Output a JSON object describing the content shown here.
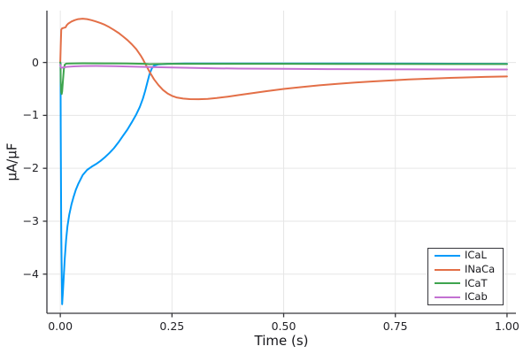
{
  "figure": {
    "background": "#FFFFFF",
    "axis_color": "#36363b",
    "grid_color": "#e6e6e6",
    "text_color": "#1f1f24"
  },
  "chart_data": {
    "type": "line",
    "title": "",
    "xlabel": "Time (s)",
    "ylabel": "μA/μF",
    "xlim": [
      -0.03,
      1.02
    ],
    "ylim": [
      -4.74,
      0.98
    ],
    "grid": true,
    "legend_position": "bottom-right",
    "x_ticks": {
      "values": [
        0,
        0.25,
        0.5,
        0.75,
        1.0
      ],
      "labels": [
        "0.00",
        "0.25",
        "0.50",
        "0.75",
        "1.00"
      ]
    },
    "y_ticks": {
      "values": [
        0,
        -1,
        -2,
        -3,
        -4
      ],
      "labels": [
        "0",
        "−1",
        "−2",
        "−3",
        "−4"
      ]
    },
    "series": [
      {
        "name": "ICaL",
        "color": "#009AFA",
        "points": [
          [
            0,
            0
          ],
          [
            0.0005,
            -0.01
          ],
          [
            0.001,
            -1.2
          ],
          [
            0.002,
            -3.2
          ],
          [
            0.004,
            -4.57
          ],
          [
            0.006,
            -4.3
          ],
          [
            0.008,
            -4.0
          ],
          [
            0.01,
            -3.7
          ],
          [
            0.013,
            -3.35
          ],
          [
            0.016,
            -3.1
          ],
          [
            0.02,
            -2.88
          ],
          [
            0.025,
            -2.68
          ],
          [
            0.03,
            -2.53
          ],
          [
            0.035,
            -2.4
          ],
          [
            0.04,
            -2.3
          ],
          [
            0.05,
            -2.13
          ],
          [
            0.06,
            -2.03
          ],
          [
            0.07,
            -1.97
          ],
          [
            0.08,
            -1.92
          ],
          [
            0.09,
            -1.86
          ],
          [
            0.1,
            -1.79
          ],
          [
            0.11,
            -1.71
          ],
          [
            0.12,
            -1.62
          ],
          [
            0.13,
            -1.51
          ],
          [
            0.14,
            -1.39
          ],
          [
            0.15,
            -1.27
          ],
          [
            0.16,
            -1.13
          ],
          [
            0.17,
            -0.98
          ],
          [
            0.178,
            -0.84
          ],
          [
            0.185,
            -0.68
          ],
          [
            0.19,
            -0.54
          ],
          [
            0.195,
            -0.37
          ],
          [
            0.2,
            -0.21
          ],
          [
            0.205,
            -0.11
          ],
          [
            0.21,
            -0.06
          ],
          [
            0.22,
            -0.035
          ],
          [
            0.24,
            -0.025
          ],
          [
            0.28,
            -0.02
          ],
          [
            0.4,
            -0.018
          ],
          [
            0.6,
            -0.02
          ],
          [
            0.8,
            -0.022
          ],
          [
            1.0,
            -0.025
          ]
        ]
      },
      {
        "name": "INaCa",
        "color": "#E36F47",
        "points": [
          [
            0,
            0
          ],
          [
            0.001,
            0.3
          ],
          [
            0.002,
            0.62
          ],
          [
            0.004,
            0.645
          ],
          [
            0.008,
            0.655
          ],
          [
            0.012,
            0.665
          ],
          [
            0.014,
            0.7
          ],
          [
            0.018,
            0.735
          ],
          [
            0.025,
            0.775
          ],
          [
            0.032,
            0.8
          ],
          [
            0.04,
            0.82
          ],
          [
            0.05,
            0.828
          ],
          [
            0.06,
            0.82
          ],
          [
            0.07,
            0.8
          ],
          [
            0.08,
            0.775
          ],
          [
            0.09,
            0.745
          ],
          [
            0.1,
            0.71
          ],
          [
            0.11,
            0.665
          ],
          [
            0.12,
            0.615
          ],
          [
            0.13,
            0.56
          ],
          [
            0.14,
            0.495
          ],
          [
            0.15,
            0.425
          ],
          [
            0.16,
            0.345
          ],
          [
            0.17,
            0.25
          ],
          [
            0.18,
            0.13
          ],
          [
            0.185,
            0.06
          ],
          [
            0.19,
            -0.02
          ],
          [
            0.195,
            -0.1
          ],
          [
            0.2,
            -0.18
          ],
          [
            0.21,
            -0.32
          ],
          [
            0.22,
            -0.43
          ],
          [
            0.23,
            -0.52
          ],
          [
            0.24,
            -0.585
          ],
          [
            0.25,
            -0.63
          ],
          [
            0.26,
            -0.66
          ],
          [
            0.275,
            -0.683
          ],
          [
            0.29,
            -0.693
          ],
          [
            0.31,
            -0.695
          ],
          [
            0.33,
            -0.688
          ],
          [
            0.35,
            -0.672
          ],
          [
            0.375,
            -0.645
          ],
          [
            0.4,
            -0.615
          ],
          [
            0.43,
            -0.578
          ],
          [
            0.46,
            -0.543
          ],
          [
            0.5,
            -0.5
          ],
          [
            0.54,
            -0.465
          ],
          [
            0.58,
            -0.432
          ],
          [
            0.62,
            -0.405
          ],
          [
            0.66,
            -0.38
          ],
          [
            0.7,
            -0.358
          ],
          [
            0.74,
            -0.34
          ],
          [
            0.78,
            -0.322
          ],
          [
            0.82,
            -0.308
          ],
          [
            0.86,
            -0.295
          ],
          [
            0.9,
            -0.284
          ],
          [
            0.95,
            -0.273
          ],
          [
            1.0,
            -0.265
          ]
        ]
      },
      {
        "name": "ICaT",
        "color": "#3EA44E",
        "points": [
          [
            0,
            0
          ],
          [
            0.0005,
            -0.02
          ],
          [
            0.001,
            -0.35
          ],
          [
            0.002,
            -0.565
          ],
          [
            0.003,
            -0.595
          ],
          [
            0.004,
            -0.55
          ],
          [
            0.006,
            -0.33
          ],
          [
            0.008,
            -0.12
          ],
          [
            0.01,
            -0.04
          ],
          [
            0.013,
            -0.022
          ],
          [
            0.02,
            -0.018
          ],
          [
            0.05,
            -0.015
          ],
          [
            0.1,
            -0.016
          ],
          [
            0.15,
            -0.018
          ],
          [
            0.19,
            -0.025
          ],
          [
            0.2,
            -0.032
          ],
          [
            0.21,
            -0.03
          ],
          [
            0.25,
            -0.026
          ],
          [
            0.35,
            -0.025
          ],
          [
            0.5,
            -0.026
          ],
          [
            0.7,
            -0.028
          ],
          [
            0.9,
            -0.03
          ],
          [
            1.0,
            -0.03
          ]
        ]
      },
      {
        "name": "ICab",
        "color": "#C371D2",
        "points": [
          [
            0,
            -0.045
          ],
          [
            0.001,
            -0.08
          ],
          [
            0.002,
            -0.1
          ],
          [
            0.004,
            -0.098
          ],
          [
            0.008,
            -0.09
          ],
          [
            0.015,
            -0.082
          ],
          [
            0.03,
            -0.073
          ],
          [
            0.05,
            -0.067
          ],
          [
            0.08,
            -0.066
          ],
          [
            0.12,
            -0.07
          ],
          [
            0.16,
            -0.077
          ],
          [
            0.2,
            -0.086
          ],
          [
            0.25,
            -0.096
          ],
          [
            0.3,
            -0.104
          ],
          [
            0.35,
            -0.11
          ],
          [
            0.4,
            -0.115
          ],
          [
            0.5,
            -0.121
          ],
          [
            0.6,
            -0.126
          ],
          [
            0.7,
            -0.129
          ],
          [
            0.8,
            -0.131
          ],
          [
            0.9,
            -0.132
          ],
          [
            1.0,
            -0.133
          ]
        ]
      }
    ]
  }
}
